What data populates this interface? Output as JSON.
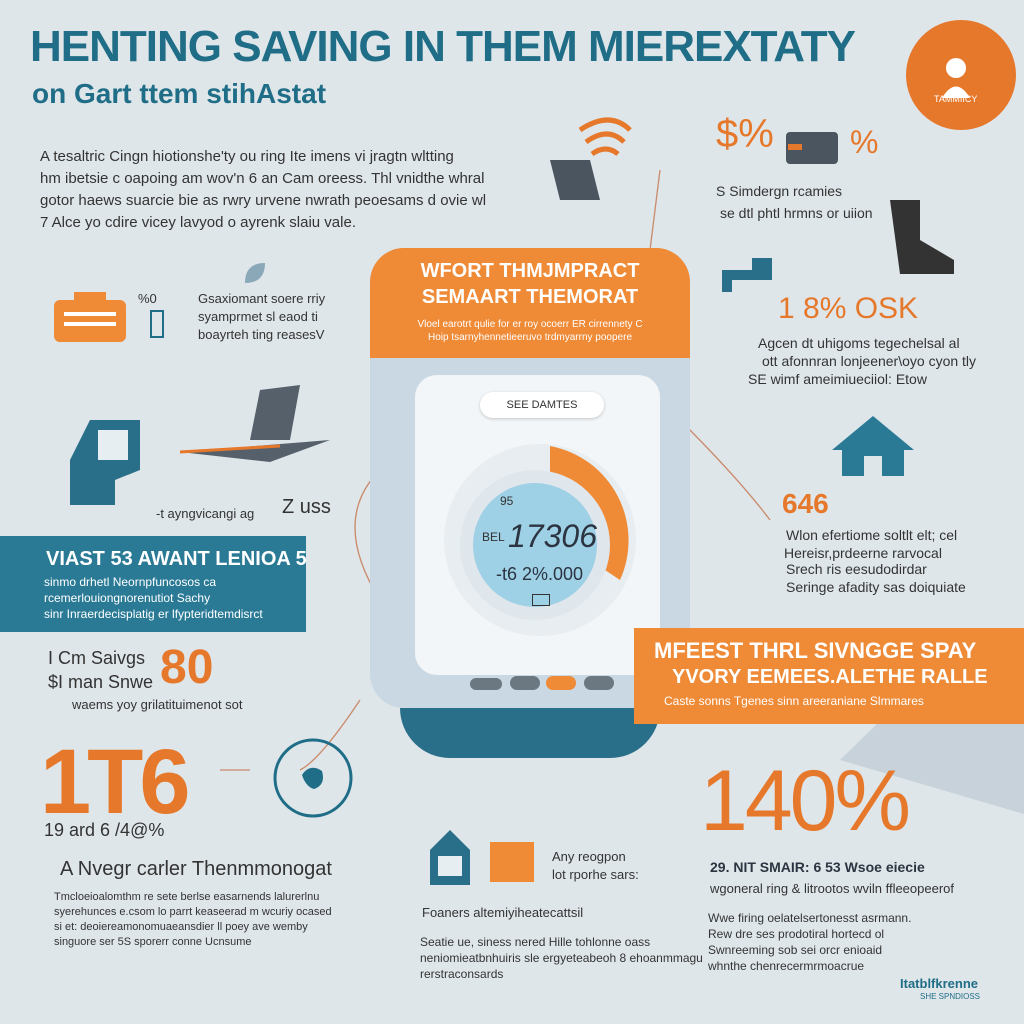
{
  "header": {
    "title": "HENTING SAVING IN THEM MIEREXTATY",
    "subtitle": "on Gart ttem stihAstat",
    "badge_label": "TAMMIICY"
  },
  "intro_lines": [
    "A tesaltric Cingn hiotionshe'ty ou ring Ite imens vi jragtn wltting",
    "hm ibetsie c oapoing am wov'n 6 an Cam oreess. Thl vnidthe whral",
    "gotor haews suarcie bie as rwry urvene nwrath peoesams d ovie wl",
    "7 Alce yo cdire vicey lavyod o ayrenk slaiu vale."
  ],
  "left_col": {
    "item1_percent": "%0",
    "item1_lines": [
      "Gsaxiomant soere rriy",
      "syamprmet sl eaod ti",
      "boayrteh ting reasesV"
    ],
    "item2_caption": "-t ayngvicangi ag",
    "item2_value": "Z uss",
    "teal_banner_title": "VIAST 53 AWANT LENIOA 5",
    "teal_banner_lines": [
      "sinmo drhetl Neornpfuncosos ca",
      "rcemerlouiongnorenutiot Sachy",
      "sinr Inraerdecisplatig er lfypteridtemdisrct"
    ],
    "savings_lines": [
      "I Cm Saivgs",
      "$I man Snwe"
    ],
    "savings_value": "80",
    "savings_caption": "waems yoy grilatituimenot sot",
    "big_value": "1T6",
    "big_sub": "19 ard 6 /4@%",
    "bottom_title": "A Nvegr carler Thenmmonogat",
    "bottom_lines": [
      "Tmcloeioalomthm re sete berlse easarnends lalurerlnu",
      "syerehunces e.csom lo parrt keaseerad m wcuriy ocased",
      "si et: deoiereamonomuaeansdier ll poey ave wemby",
      "singuore ser 5S sporerr conne Ucnsume"
    ]
  },
  "center": {
    "panel_title": "WFORT THMJMPRACT",
    "panel_subtitle": "SEMAART THEMORAT",
    "panel_text": [
      "Vloel earotrt qulie for er roy ocoerr ER cirrennety C",
      "Hoip tsarnyhennetieeruvo trdmyarrny poopere"
    ],
    "display_label": "SEE DAMTES",
    "dial_small_a": "95",
    "dial_small_b": "BEL",
    "dial_value": "17306",
    "dial_sub": "-t6 2%.000",
    "bottom_icon_caption_lines": [
      "Any reogpon",
      "lot rporhe sars:"
    ],
    "bottom_title": "Foaners altemiyiheatecattsil",
    "bottom_lines": [
      "Seatie ue, siness nered Hille tohlonne oass",
      "neniomieatbnhuiris sle ergyeteabeoh 8 ehoanmmagu",
      "rerstraconsards"
    ]
  },
  "right_col": {
    "percent_a": "$%",
    "percent_b": "%",
    "lines_a": [
      "S Simdergn rcamies",
      "se dtl phtl hrmns or uiion"
    ],
    "value_b": "1 8% OSK",
    "lines_b": [
      "Agcen dt uhigoms tegechelsal al",
      "ott afonnran lonjeener\\oyo cyon tly",
      "SE wimf ameimiueciiol: Etow"
    ],
    "value_c": "646",
    "lines_c": [
      "Wlon efertiome soltlt elt; cel",
      "Hereisr,prdeerne rarvocal",
      "Srech ris eesudodirdar",
      "Seringe afadity sas doiquiate"
    ],
    "orange_banner_title": "MFEEST THRL SIVNGGE SPAY",
    "orange_banner_subtitle": "YVORY EEMEES.ALETHE RALLE",
    "orange_banner_text": "Caste sonns Tgenes sinn areeraniane Slmmares",
    "big_value": "140%",
    "stat_line": "29. NIT SMAIR: 6 53 Wsoe eiecie",
    "stat_lines": [
      "wgoneral ring & litrootos wviln ffleeopeerof"
    ],
    "bottom_lines": [
      "Wwe firing oelatelsertonesst asrmann.",
      "Rew dre ses prodotiral hortecd ol",
      "Swnreeming sob sei orcr enioaid",
      "whnthe chenrecermrmoacrue"
    ],
    "logo_text": "Itatblfkrenne",
    "logo_sub": "SHE SPNDIOSS"
  }
}
